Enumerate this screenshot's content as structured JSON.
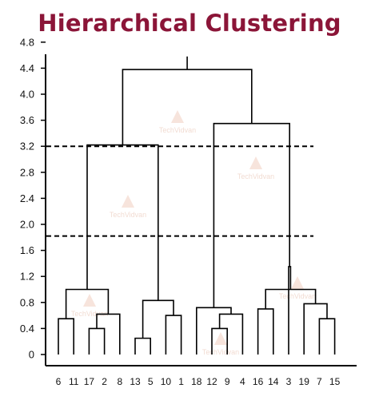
{
  "title": "Hierarchical Clustering",
  "watermark": "TechVidvan",
  "colors": {
    "title": "#8b1538",
    "line": "#000000",
    "watermark": "#e7b39c"
  },
  "chart_data": {
    "type": "dendrogram",
    "title": "Hierarchical Clustering",
    "ylim": [
      0,
      4.8
    ],
    "yticks": [
      0,
      0.4,
      0.8,
      1.2,
      1.6,
      2.0,
      2.4,
      2.8,
      3.2,
      3.6,
      4.0,
      4.4,
      4.8
    ],
    "ytick_labels": [
      "0",
      "0.4",
      "0.8",
      "1.2",
      "1.6",
      "2.0",
      "2.4",
      "2.8",
      "3.2",
      "3.6",
      "4.0",
      "4.4",
      "4.8"
    ],
    "leaves": [
      "6",
      "11",
      "17",
      "2",
      "8",
      "13",
      "5",
      "10",
      "1",
      "18",
      "12",
      "9",
      "4",
      "16",
      "14",
      "3",
      "19",
      "7",
      "15"
    ],
    "merges": [
      {
        "left": "leaf:0",
        "right": "leaf:1",
        "height": 0.55
      },
      {
        "left": "leaf:2",
        "right": "leaf:3",
        "height": 0.4
      },
      {
        "left": "merge:1",
        "right": "leaf:4",
        "height": 0.62
      },
      {
        "left": "merge:0",
        "right": "merge:2",
        "height": 1.0
      },
      {
        "left": "leaf:5",
        "right": "leaf:6",
        "height": 0.25
      },
      {
        "left": "leaf:7",
        "right": "leaf:8",
        "height": 0.6
      },
      {
        "left": "merge:4",
        "right": "merge:5",
        "height": 0.83
      },
      {
        "left": "merge:3",
        "right": "merge:6",
        "height": 3.22
      },
      {
        "left": "leaf:10",
        "right": "leaf:11",
        "height": 0.4
      },
      {
        "left": "merge:8",
        "right": "leaf:12",
        "height": 0.62
      },
      {
        "left": "leaf:9",
        "right": "merge:9",
        "height": 0.72
      },
      {
        "left": "leaf:13",
        "right": "leaf:14",
        "height": 0.7
      },
      {
        "left": "leaf:17",
        "right": "leaf:18",
        "height": 0.55
      },
      {
        "left": "leaf:16",
        "right": "merge:12",
        "height": 0.78
      },
      {
        "left": "merge:11",
        "right": "merge:13",
        "height": 1.0
      },
      {
        "left": "leaf:15",
        "right": "merge:14",
        "height": 1.35
      },
      {
        "left": "merge:10",
        "right": "merge:15",
        "height": 3.55
      },
      {
        "left": "merge:7",
        "right": "merge:16",
        "height": 4.38
      }
    ],
    "root_stem_top": 4.58,
    "cut_lines": [
      3.2,
      1.82
    ],
    "line_style": {
      "cut_lines": "dashed"
    }
  }
}
